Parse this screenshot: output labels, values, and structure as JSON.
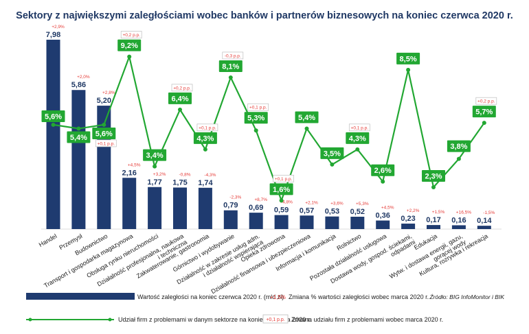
{
  "chart_data": {
    "type": "bar+line",
    "title": "Sektory z największymi zaległościami wobec banków i partnerów biznesowych na koniec czerwca 2020 r.",
    "source": "Źródło: BIG InfoMonitor i BIK",
    "categories": [
      [
        "Handel"
      ],
      [
        "Przemysł"
      ],
      [
        "Budownictwo"
      ],
      [
        "Transport i gospodarka magazynowa"
      ],
      [
        "Obsługa rynku nieruchomości"
      ],
      [
        "Działalność profesjonalna, naukowa",
        "i techniczna"
      ],
      [
        "Zakwaterowanie, gastronomia"
      ],
      [
        "Górnictwo i wydobywanie"
      ],
      [
        "Działalność w zakresie usług adm.",
        "i działalność wspierająca"
      ],
      [
        "Opieka zdrowotna"
      ],
      [
        "Działalność finansowa i ubezpieczeniowa"
      ],
      [
        "Informacja i komunikacja"
      ],
      [
        "Rolnictwo"
      ],
      [
        "Pozostała działalność usługowa"
      ],
      [
        "Dostawa wody, gospod. ściekami,",
        "odpadami"
      ],
      [
        "Edukacja"
      ],
      [
        "Wytw. i dostawa energii, gazu,",
        "gorącej wody"
      ],
      [
        "Kultura, rozrywka i rekreacja"
      ]
    ],
    "series": [
      {
        "name": "Wartość zaległości na koniec czerwca 2020 r. (mld zł)",
        "type": "bar",
        "color": "#1f3b70",
        "values": [
          7.98,
          5.86,
          5.2,
          2.16,
          1.77,
          1.75,
          1.74,
          0.79,
          0.69,
          0.59,
          0.57,
          0.53,
          0.52,
          0.36,
          0.23,
          0.17,
          0.16,
          0.14
        ],
        "labels": [
          "7,98",
          "5,86",
          "5,20",
          "2,16",
          "1,77",
          "1,75",
          "1,74",
          "0,79",
          "0,69",
          "0,59",
          "0,57",
          "0,53",
          "0,52",
          "0,36",
          "0,23",
          "0,17",
          "0,16",
          "0,14"
        ]
      },
      {
        "name": "Zmiana % wartości zaległości wobec marca 2020 r.",
        "type": "annotation",
        "color": "#e53935",
        "labels": [
          "+2,9%",
          "+2,0%",
          "+2,8%",
          "+4,5%",
          "+3,2%",
          "-0,8%",
          "-4,3%",
          "-2,3%",
          "+8,7%",
          "+4,8%",
          "+2,1%",
          "+3,6%",
          "+5,3%",
          "+4,5%",
          "+2,2%",
          "+1,5%",
          "+16,5%",
          "-1,5%"
        ]
      },
      {
        "name": "Udział firm z problemami w danym sektorze na koniec czerwca 2020 r.",
        "type": "line",
        "color": "#22a732",
        "values": [
          5.6,
          5.4,
          5.6,
          9.2,
          3.4,
          6.4,
          4.3,
          8.1,
          5.3,
          1.6,
          5.4,
          3.5,
          4.3,
          2.6,
          8.5,
          2.3,
          3.8,
          5.7
        ],
        "labels": [
          "5,6%",
          "5,4%",
          "5,6%",
          "9,2%",
          "3,4%",
          "6,4%",
          "4,3%",
          "8,1%",
          "5,3%",
          "1,6%",
          "5,4%",
          "3,5%",
          "4,3%",
          "2,6%",
          "8,5%",
          "2,3%",
          "3,8%",
          "5,7%"
        ]
      },
      {
        "name": "Zmiana udziału firm z problemami wobec marca 2020 r.",
        "type": "annotation",
        "color": "#e53935",
        "labels": [
          "",
          "",
          "+0,1 p.p.",
          "+0,2 p.p.",
          "",
          "+0,2 p.p.",
          "+0,1 p.p.",
          "-0,3 p.p.",
          "+0,1 p.p.",
          "+0,1 p.p.",
          "",
          "",
          "+0,1 p.p.",
          "",
          "",
          "",
          "",
          "+0,2 p.p."
        ]
      }
    ],
    "legend": {
      "bar_sample": "",
      "pct_sample": "+1,5%",
      "pp_sample": "+0,1 p.p."
    }
  }
}
